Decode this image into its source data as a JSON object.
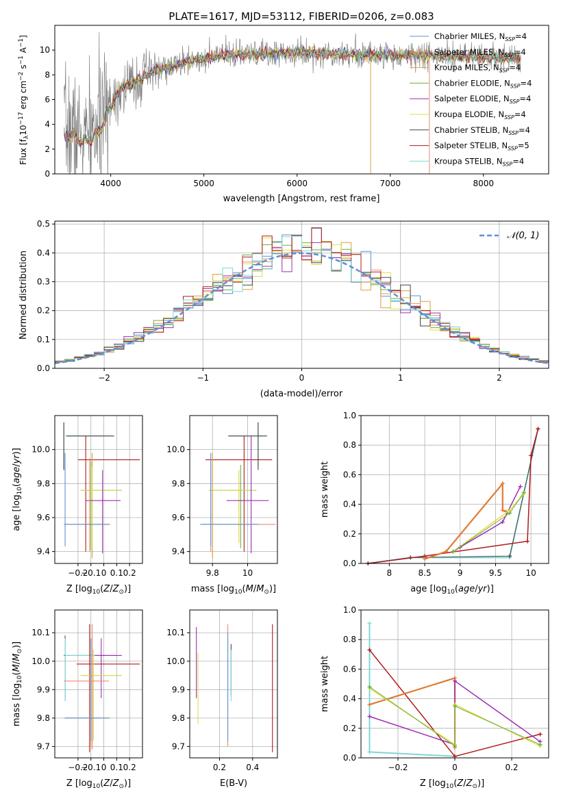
{
  "figure_title": "PLATE=1617, MJD=53112, FIBERID=0206, z=0.083",
  "colors": {
    "Chabrier MILES": "#5b8fd8",
    "Salpeter MILES": "#f08a6e",
    "Kroupa MILES": "#d9a23a",
    "Chabrier ELODIE": "#6aae3c",
    "Salpeter ELODIE": "#9b2fb0",
    "Kroupa ELODIE": "#dede42",
    "Chabrier STELIB": "#444444",
    "Salpeter STELIB": "#b01818",
    "Kroupa STELIB": "#7fd6d6",
    "data_spectrum": "#808080",
    "normal_curve": "#5b8fd8",
    "mass_weight_orange": "#e07a30",
    "mass_weight_pink": "#f08ac0"
  },
  "chart_data": [
    {
      "id": "spectrum",
      "type": "line",
      "xlabel": "wavelength [Angstrom, rest frame]",
      "ylabel": "Flux [f_λ10^-17 erg cm^-2 s^-1 A^-1]",
      "xlim": [
        3400,
        8700
      ],
      "ylim": [
        0,
        12
      ],
      "xticks": [
        4000,
        5000,
        6000,
        7000,
        8000
      ],
      "yticks": [
        0,
        2,
        4,
        6,
        8,
        10
      ],
      "grid": false,
      "legend": "top-right",
      "legend_entries": [
        {
          "label": "Chabrier MILES",
          "nssp": "4"
        },
        {
          "label": "Salpeter MILES",
          "nssp": "4"
        },
        {
          "label": "Kroupa MILES",
          "nssp": "4"
        },
        {
          "label": "Chabrier ELODIE",
          "nssp": "4"
        },
        {
          "label": "Salpeter ELODIE",
          "nssp": "4"
        },
        {
          "label": "Kroupa ELODIE",
          "nssp": "4"
        },
        {
          "label": "Chabrier STELIB",
          "nssp": "4"
        },
        {
          "label": "Salpeter STELIB",
          "nssp": "5"
        },
        {
          "label": "Kroupa STELIB",
          "nssp": "4"
        }
      ],
      "continuum": {
        "x": [
          3500,
          3600,
          3700,
          3800,
          3900,
          4000,
          4100,
          4200,
          4300,
          4500,
          4700,
          4900,
          5100,
          5300,
          5500,
          5700,
          5900,
          6100,
          6300,
          6500,
          6700,
          6900,
          7100,
          7300,
          7500,
          7700,
          7900,
          8100,
          8300,
          8400
        ],
        "y": [
          3.6,
          3.4,
          3.0,
          3.2,
          4.2,
          6.0,
          6.8,
          7.2,
          7.6,
          8.4,
          8.8,
          9.2,
          9.4,
          9.6,
          9.6,
          9.7,
          9.8,
          9.8,
          9.7,
          9.7,
          9.6,
          9.6,
          9.6,
          9.6,
          9.5,
          9.5,
          9.4,
          9.4,
          9.4,
          9.4
        ]
      }
    },
    {
      "id": "residuals",
      "type": "line",
      "xlabel": "(data-model)/error",
      "ylabel": "Normed distribution",
      "xlim": [
        -2.5,
        2.5
      ],
      "ylim": [
        0,
        0.51
      ],
      "xticks": [
        -2,
        -1,
        0,
        1,
        2
      ],
      "yticks": [
        0.0,
        0.1,
        0.2,
        0.3,
        0.4,
        0.5
      ],
      "grid": true,
      "legend": "top-right",
      "legend_label": "𝒩(0, 1)",
      "bin_width": 0.1
    },
    {
      "id": "age_vs_Z",
      "type": "scatter",
      "xlabel": "Z [log10(Z/Z⊙)]",
      "ylabel": "age  [log10(age/yr)]",
      "xlim": [
        -0.38,
        0.3
      ],
      "ylim": [
        9.33,
        10.2
      ],
      "xticks": [
        -0.2,
        -0.1,
        0.0,
        0.1,
        0.2
      ],
      "yticks": [
        9.4,
        9.6,
        9.8,
        10.0
      ],
      "grid": true
    },
    {
      "id": "age_vs_mass",
      "type": "scatter",
      "xlabel": "mass [log10(M/M⊙)]",
      "xlim": [
        9.67,
        10.17
      ],
      "ylim": [
        9.33,
        10.2
      ],
      "xticks": [
        9.8,
        10.0
      ],
      "yticks": [
        9.4,
        9.6,
        9.8,
        10.0
      ],
      "grid": true
    },
    {
      "id": "weight_vs_age",
      "type": "line",
      "xlabel": "age  [log10(age/yr)]",
      "ylabel": "mass weight",
      "xlim": [
        7.6,
        10.25
      ],
      "ylim": [
        0,
        1.0
      ],
      "xticks": [
        8.0,
        8.5,
        9.0,
        9.5,
        10.0
      ],
      "yticks": [
        0.0,
        0.2,
        0.4,
        0.6,
        0.8,
        1.0
      ],
      "grid": true
    },
    {
      "id": "mass_vs_Z",
      "type": "scatter",
      "xlabel": "Z [log10(Z/Z⊙)]",
      "ylabel": "mass [log10(M/M⊙)]",
      "xlim": [
        -0.38,
        0.3
      ],
      "ylim": [
        9.66,
        10.18
      ],
      "xticks": [
        -0.2,
        -0.1,
        0.0,
        0.1,
        0.2
      ],
      "yticks": [
        9.7,
        9.8,
        9.9,
        10.0,
        10.1
      ],
      "grid": true
    },
    {
      "id": "mass_vs_ebv",
      "type": "scatter",
      "xlabel": "E(B-V)",
      "xlim": [
        0.02,
        0.55
      ],
      "ylim": [
        9.66,
        10.18
      ],
      "xticks": [
        0.2,
        0.4
      ],
      "yticks": [
        9.7,
        9.8,
        9.9,
        10.0,
        10.1
      ],
      "grid": true
    },
    {
      "id": "weight_vs_Z",
      "type": "line",
      "xlabel": "Z [log10(Z/Z⊙)]",
      "ylabel": "mass weight",
      "xlim": [
        -0.33,
        0.33
      ],
      "ylim": [
        0,
        1.0
      ],
      "xticks": [
        -0.2,
        0.0,
        0.2
      ],
      "yticks": [
        0.0,
        0.2,
        0.4,
        0.6,
        0.8,
        1.0
      ],
      "grid": true
    }
  ]
}
